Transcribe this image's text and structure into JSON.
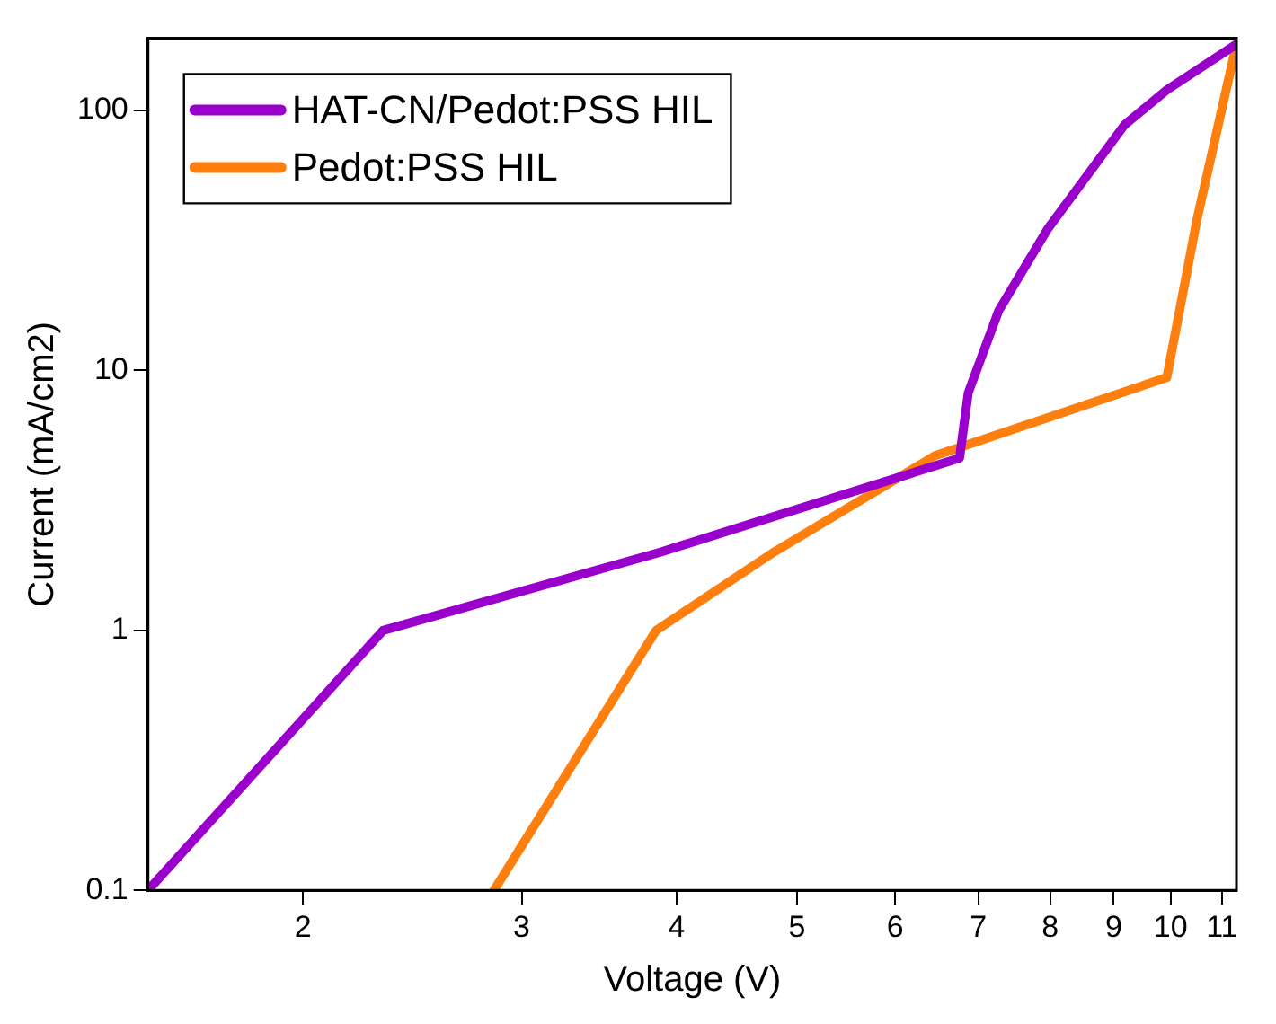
{
  "chart_data": {
    "type": "line",
    "xlabel": "Voltage (V)",
    "ylabel": "Current (mA/cm2)",
    "log": "xy",
    "legend": "top left",
    "marker": "none",
    "line_style": "solid",
    "xlim": [
      1.5,
      11.3
    ],
    "xticks": [
      2,
      3,
      4,
      5,
      6,
      7,
      8,
      9,
      10,
      11
    ],
    "ylim": [
      0.1,
      190
    ],
    "yticks": [
      0.1,
      1,
      10,
      100
    ],
    "series": [
      {
        "name": "HAT-CN/Pedot:PSS HIL",
        "color": "#9900cc",
        "x": [
          1.5,
          2.32,
          3.88,
          6.76,
          6.87,
          7.27,
          7.96,
          9.18,
          9.93,
          11.3
        ],
        "values": [
          0.1,
          1,
          2.0,
          4.6,
          8.2,
          17,
          35,
          88,
          120,
          180
        ]
      },
      {
        "name": "Pedot:PSS HIL",
        "color": "#ff7f0e",
        "x": [
          2.85,
          3.85,
          4.79,
          6.46,
          9.93,
          10.5,
          11.3
        ],
        "values": [
          0.1,
          1,
          2.0,
          4.7,
          9.4,
          38,
          180
        ]
      }
    ]
  }
}
